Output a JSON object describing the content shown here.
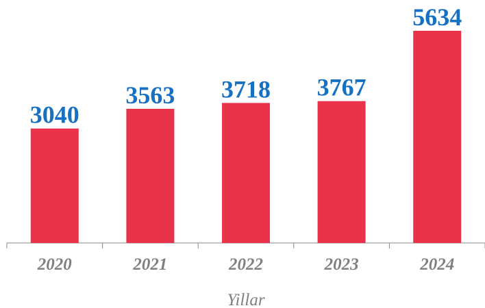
{
  "chart_data": {
    "type": "bar",
    "x_label": "Yillar",
    "categories": [
      "2020",
      "2021",
      "2022",
      "2023",
      "2024"
    ],
    "values": [
      3040,
      3563,
      3718,
      3767,
      5634
    ],
    "color": "#e8334a",
    "label_color": "#1670c4"
  }
}
